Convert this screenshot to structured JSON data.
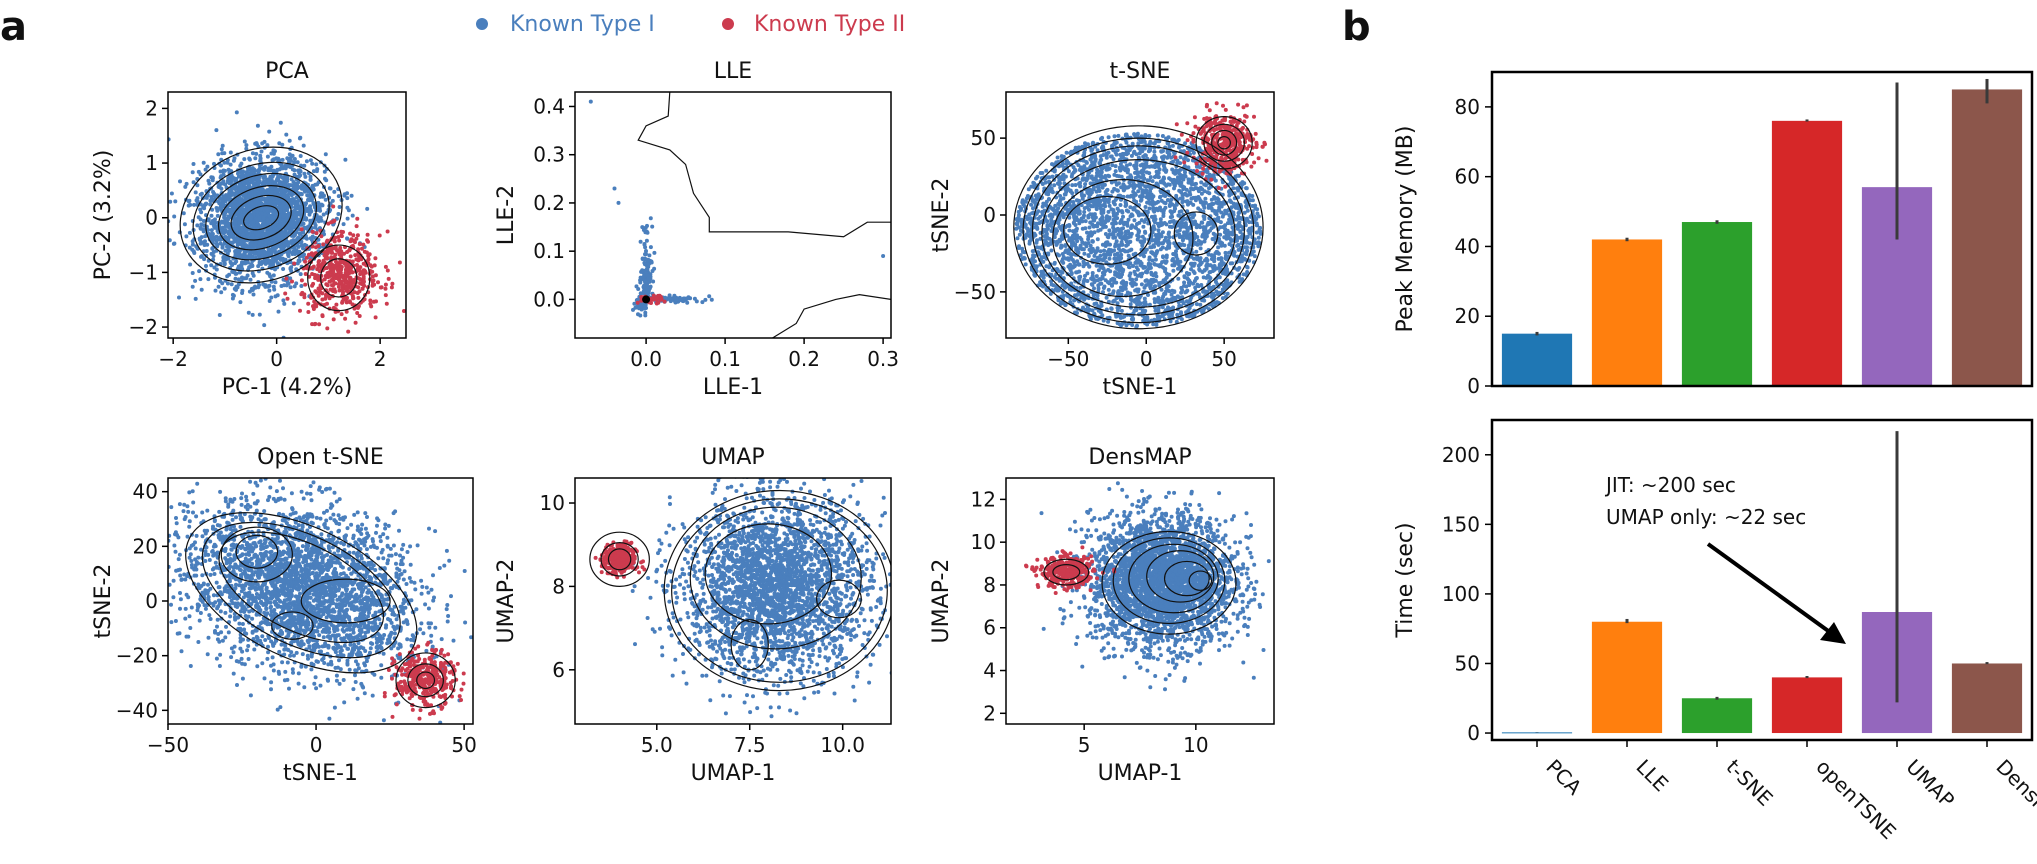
{
  "panel_labels": {
    "a": "a",
    "b": "b"
  },
  "colors": {
    "type1": "#4a7fbd",
    "type2": "#cc3b4e",
    "contour": "#111111",
    "axis": "#000000"
  },
  "legend": [
    {
      "label": "Known Type I",
      "color": "#4a7fbd"
    },
    {
      "label": "Known Type II",
      "color": "#cc3b4e"
    }
  ],
  "chart_data": [
    {
      "type": "scatter",
      "title": "PCA",
      "xlabel": "PC-1 (4.2%)",
      "ylabel": "PC-2 (3.2%)",
      "xlim": [
        -2.1,
        2.5
      ],
      "ylim": [
        -2.2,
        2.3
      ],
      "xticks": [
        -2,
        0,
        2
      ],
      "yticks": [
        -2,
        -1,
        0,
        1,
        2
      ],
      "xtick_labels": [
        "−2",
        "0",
        "2"
      ],
      "ytick_labels": [
        "−2",
        "−1",
        "0",
        "1",
        "2"
      ],
      "series": [
        {
          "name": "Known Type I",
          "kind": "cloud",
          "center": [
            -0.3,
            0.0
          ],
          "spread": [
            0.6,
            0.55
          ],
          "tilt": 0.35,
          "n": 2600
        },
        {
          "name": "Known Type II",
          "kind": "cloud",
          "center": [
            1.25,
            -1.05
          ],
          "spread": [
            0.38,
            0.38
          ],
          "tilt": 0,
          "n": 500
        }
      ],
      "contours": [
        {
          "center": [
            -0.3,
            0.05
          ],
          "rx": 1.6,
          "ry": 1.2,
          "rot": 0.35
        },
        {
          "center": [
            -0.3,
            0.02
          ],
          "rx": 1.35,
          "ry": 0.95,
          "rot": 0.35
        },
        {
          "center": [
            -0.3,
            0.02
          ],
          "rx": 1.1,
          "ry": 0.75,
          "rot": 0.35
        },
        {
          "center": [
            -0.3,
            0.0
          ],
          "rx": 0.85,
          "ry": 0.55,
          "rot": 0.35
        },
        {
          "center": [
            -0.3,
            0.0
          ],
          "rx": 0.6,
          "ry": 0.38,
          "rot": 0.35
        },
        {
          "center": [
            -0.3,
            0.0
          ],
          "rx": 0.35,
          "ry": 0.2,
          "rot": 0.35
        },
        {
          "center": [
            1.2,
            -1.1
          ],
          "rx": 0.6,
          "ry": 0.6,
          "rot": 0
        },
        {
          "center": [
            1.2,
            -1.1
          ],
          "rx": 0.35,
          "ry": 0.35,
          "rot": 0
        }
      ]
    },
    {
      "type": "scatter",
      "title": "LLE",
      "xlabel": "LLE-1",
      "ylabel": "LLE-2",
      "xlim": [
        -0.09,
        0.31
      ],
      "ylim": [
        -0.08,
        0.43
      ],
      "xticks": [
        0.0,
        0.1,
        0.2,
        0.3
      ],
      "yticks": [
        0.0,
        0.1,
        0.2,
        0.3,
        0.4
      ],
      "xtick_labels": [
        "0.0",
        "0.1",
        "0.2",
        "0.3"
      ],
      "ytick_labels": [
        "0.0",
        "0.1",
        "0.2",
        "0.3",
        "0.4"
      ],
      "series": [
        {
          "name": "Known Type I",
          "kind": "lle",
          "n": 300
        },
        {
          "name": "Known Type II",
          "kind": "cloud",
          "center": [
            0.005,
            0.0
          ],
          "spread": [
            0.008,
            0.004
          ],
          "tilt": 0,
          "n": 40
        }
      ],
      "contour_paths": [
        [
          [
            0.03,
            0.43
          ],
          [
            0.028,
            0.38
          ],
          [
            0.0,
            0.36
          ],
          [
            -0.01,
            0.33
          ],
          [
            0.03,
            0.31
          ],
          [
            0.05,
            0.28
          ],
          [
            0.06,
            0.22
          ],
          [
            0.08,
            0.17
          ],
          [
            0.08,
            0.14
          ],
          [
            0.18,
            0.14
          ],
          [
            0.25,
            0.13
          ],
          [
            0.28,
            0.16
          ],
          [
            0.31,
            0.16
          ]
        ],
        [
          [
            0.16,
            -0.08
          ],
          [
            0.19,
            -0.05
          ],
          [
            0.2,
            -0.02
          ],
          [
            0.24,
            0.0
          ],
          [
            0.27,
            0.01
          ],
          [
            0.31,
            0.0
          ]
        ]
      ]
    },
    {
      "type": "scatter",
      "title": "t-SNE",
      "xlabel": "tSNE-1",
      "ylabel": "tSNE-2",
      "xlim": [
        -90,
        82
      ],
      "ylim": [
        -80,
        80
      ],
      "xticks": [
        -50,
        0,
        50
      ],
      "yticks": [
        -50,
        0,
        50
      ],
      "xtick_labels": [
        "−50",
        "0",
        "50"
      ],
      "ytick_labels": [
        "−50",
        "0",
        "50"
      ],
      "series": [
        {
          "name": "Known Type I",
          "kind": "disk",
          "center": [
            -5,
            -10
          ],
          "spread": [
            75,
            60
          ],
          "tilt": 0,
          "n": 3200
        },
        {
          "name": "Known Type II",
          "kind": "cloud",
          "center": [
            50,
            47
          ],
          "spread": [
            10,
            10
          ],
          "tilt": 0,
          "n": 400
        }
      ],
      "contours": [
        {
          "center": [
            -5,
            -8
          ],
          "rx": 80,
          "ry": 66,
          "rot": 0
        },
        {
          "center": [
            -5,
            -10
          ],
          "rx": 74,
          "ry": 60,
          "rot": 0
        },
        {
          "center": [
            -5,
            -10
          ],
          "rx": 68,
          "ry": 55,
          "rot": 0
        },
        {
          "center": [
            -5,
            -12
          ],
          "rx": 62,
          "ry": 48,
          "rot": 0
        },
        {
          "center": [
            -15,
            -15
          ],
          "rx": 45,
          "ry": 38,
          "rot": 0
        },
        {
          "center": [
            -25,
            -10
          ],
          "rx": 28,
          "ry": 22,
          "rot": 0
        },
        {
          "center": [
            32,
            -12
          ],
          "rx": 14,
          "ry": 14,
          "rot": 0
        },
        {
          "center": [
            50,
            47
          ],
          "rx": 18,
          "ry": 17,
          "rot": 0
        },
        {
          "center": [
            50,
            47
          ],
          "rx": 13,
          "ry": 12,
          "rot": 0
        },
        {
          "center": [
            50,
            47
          ],
          "rx": 8,
          "ry": 8,
          "rot": 0
        },
        {
          "center": [
            50,
            47
          ],
          "rx": 4,
          "ry": 4,
          "rot": 0
        }
      ]
    },
    {
      "type": "scatter",
      "title": "Open t-SNE",
      "xlabel": "tSNE-1",
      "ylabel": "tSNE-2",
      "xlim": [
        -50,
        53
      ],
      "ylim": [
        -45,
        45
      ],
      "xticks": [
        -50,
        0,
        50
      ],
      "yticks": [
        -40,
        -20,
        0,
        20,
        40
      ],
      "xtick_labels": [
        "−50",
        "0",
        "50"
      ],
      "ytick_labels": [
        "−40",
        "−20",
        "0",
        "20",
        "40"
      ],
      "series": [
        {
          "name": "Known Type I",
          "kind": "cloud",
          "center": [
            -5,
            5
          ],
          "spread": [
            20,
            14
          ],
          "tilt": -0.45,
          "n": 3000
        },
        {
          "name": "Known Type II",
          "kind": "cloud",
          "center": [
            37,
            -29
          ],
          "spread": [
            5,
            5
          ],
          "tilt": 0,
          "n": 350
        }
      ],
      "contours": [
        {
          "center": [
            -5,
            3
          ],
          "rx": 42,
          "ry": 24,
          "rot": -0.45
        },
        {
          "center": [
            -5,
            4
          ],
          "rx": 36,
          "ry": 20,
          "rot": -0.45
        },
        {
          "center": [
            -5,
            5
          ],
          "rx": 30,
          "ry": 16,
          "rot": -0.45
        },
        {
          "center": [
            -20,
            17
          ],
          "rx": 12,
          "ry": 10,
          "rot": 0
        },
        {
          "center": [
            -20,
            18
          ],
          "rx": 7,
          "ry": 6,
          "rot": 0
        },
        {
          "center": [
            10,
            0
          ],
          "rx": 15,
          "ry": 8,
          "rot": 0
        },
        {
          "center": [
            -8,
            -9
          ],
          "rx": 7,
          "ry": 5,
          "rot": 0
        },
        {
          "center": [
            37,
            -29
          ],
          "rx": 10,
          "ry": 10,
          "rot": 0
        },
        {
          "center": [
            37,
            -29
          ],
          "rx": 6,
          "ry": 6,
          "rot": 0
        },
        {
          "center": [
            37,
            -29
          ],
          "rx": 3,
          "ry": 3,
          "rot": 0
        }
      ]
    },
    {
      "type": "scatter",
      "title": "UMAP",
      "xlabel": "UMAP-1",
      "ylabel": "UMAP-2",
      "xlim": [
        2.8,
        11.3
      ],
      "ylim": [
        4.7,
        10.6
      ],
      "xticks": [
        5.0,
        7.5,
        10.0
      ],
      "yticks": [
        6,
        8,
        10
      ],
      "xtick_labels": [
        "5.0",
        "7.5",
        "10.0"
      ],
      "ytick_labels": [
        "6",
        "8",
        "10"
      ],
      "series": [
        {
          "name": "Known Type I",
          "kind": "cloud",
          "center": [
            8.2,
            8.0
          ],
          "spread": [
            1.25,
            1.05
          ],
          "tilt": 0.1,
          "n": 2800
        },
        {
          "name": "Known Type II",
          "kind": "cloud",
          "center": [
            4.0,
            8.65
          ],
          "spread": [
            0.22,
            0.18
          ],
          "tilt": 0,
          "n": 350
        }
      ],
      "contours": [
        {
          "center": [
            8.3,
            7.9
          ],
          "rx": 3.1,
          "ry": 2.4,
          "rot": 0
        },
        {
          "center": [
            8.3,
            7.9
          ],
          "rx": 2.9,
          "ry": 2.2,
          "rot": 0
        },
        {
          "center": [
            8.2,
            8.2
          ],
          "rx": 2.3,
          "ry": 1.7,
          "rot": 0
        },
        {
          "center": [
            8.0,
            8.3
          ],
          "rx": 1.7,
          "ry": 1.2,
          "rot": 0
        },
        {
          "center": [
            9.9,
            7.7
          ],
          "rx": 0.6,
          "ry": 0.45,
          "rot": 0
        },
        {
          "center": [
            7.5,
            6.6
          ],
          "rx": 0.5,
          "ry": 0.6,
          "rot": 0
        },
        {
          "center": [
            4.0,
            8.65
          ],
          "rx": 0.8,
          "ry": 0.65,
          "rot": 0
        },
        {
          "center": [
            4.0,
            8.65
          ],
          "rx": 0.5,
          "ry": 0.4,
          "rot": 0
        },
        {
          "center": [
            4.0,
            8.65
          ],
          "rx": 0.3,
          "ry": 0.25,
          "rot": 0
        }
      ]
    },
    {
      "type": "scatter",
      "title": "DensMAP",
      "xlabel": "UMAP-1",
      "ylabel": "UMAP-2",
      "xlim": [
        1.5,
        13.5
      ],
      "ylim": [
        1.5,
        13.0
      ],
      "xticks": [
        5,
        10
      ],
      "yticks": [
        2,
        4,
        6,
        8,
        10,
        12
      ],
      "xtick_labels": [
        "5",
        "10"
      ],
      "ytick_labels": [
        "2",
        "4",
        "6",
        "8",
        "10",
        "12"
      ],
      "series": [
        {
          "name": "Known Type I",
          "kind": "cloud",
          "center": [
            8.5,
            8.2
          ],
          "spread": [
            1.6,
            1.5
          ],
          "tilt": 0,
          "n": 3000
        },
        {
          "name": "Known Type II",
          "kind": "cloud",
          "center": [
            4.2,
            8.6
          ],
          "spread": [
            0.6,
            0.35
          ],
          "tilt": 0,
          "n": 350
        }
      ],
      "contours": [
        {
          "center": [
            8.8,
            8.1
          ],
          "rx": 3.0,
          "ry": 2.4,
          "rot": 0
        },
        {
          "center": [
            8.8,
            8.2
          ],
          "rx": 2.5,
          "ry": 2.0,
          "rot": 0
        },
        {
          "center": [
            9.0,
            8.3
          ],
          "rx": 2.0,
          "ry": 1.6,
          "rot": 0
        },
        {
          "center": [
            9.3,
            8.4
          ],
          "rx": 1.5,
          "ry": 1.2,
          "rot": 0
        },
        {
          "center": [
            9.6,
            8.3
          ],
          "rx": 1.0,
          "ry": 0.8,
          "rot": 0
        },
        {
          "center": [
            10.2,
            8.2
          ],
          "rx": 0.5,
          "ry": 0.45,
          "rot": 0
        },
        {
          "center": [
            4.2,
            8.6
          ],
          "rx": 1.0,
          "ry": 0.6,
          "rot": 0
        },
        {
          "center": [
            4.2,
            8.6
          ],
          "rx": 0.6,
          "ry": 0.35,
          "rot": 0
        }
      ]
    },
    {
      "type": "bar",
      "ylabel": "Peak Memory (MB)",
      "categories": [
        "PCA",
        "LLE",
        "t-SNE",
        "openTSNE",
        "UMAP",
        "DensMAP"
      ],
      "values": [
        15,
        42,
        47,
        76,
        57,
        85
      ],
      "err_low": [
        14.5,
        41.5,
        46.5,
        75.8,
        42,
        81
      ],
      "err_high": [
        15.5,
        42.5,
        47.5,
        76.4,
        87,
        88
      ],
      "colors": [
        "#1f77b4",
        "#ff7f0e",
        "#2ca02c",
        "#d62728",
        "#9467bd",
        "#8c564b"
      ],
      "ylim": [
        0,
        90
      ],
      "yticks": [
        0,
        20,
        40,
        60,
        80
      ],
      "ytick_labels": [
        "0",
        "20",
        "40",
        "60",
        "80"
      ]
    },
    {
      "type": "bar",
      "ylabel": "Time (sec)",
      "categories": [
        "PCA",
        "LLE",
        "t-SNE",
        "openTSNE",
        "UMAP",
        "DensMAP"
      ],
      "values": [
        0.5,
        80,
        25,
        40,
        87,
        50
      ],
      "err_low": [
        0.4,
        79,
        24,
        39.5,
        22,
        49.5
      ],
      "err_high": [
        0.6,
        82,
        26,
        41,
        217,
        51
      ],
      "colors": [
        "#1f77b4",
        "#ff7f0e",
        "#2ca02c",
        "#d62728",
        "#9467bd",
        "#8c564b"
      ],
      "ylim": [
        -5,
        225
      ],
      "yticks": [
        0,
        50,
        100,
        150,
        200
      ],
      "ytick_labels": [
        "0",
        "50",
        "100",
        "150",
        "200"
      ],
      "annotation": {
        "lines": [
          "JIT: ~200 sec",
          "UMAP only: ~22 sec"
        ]
      }
    }
  ]
}
